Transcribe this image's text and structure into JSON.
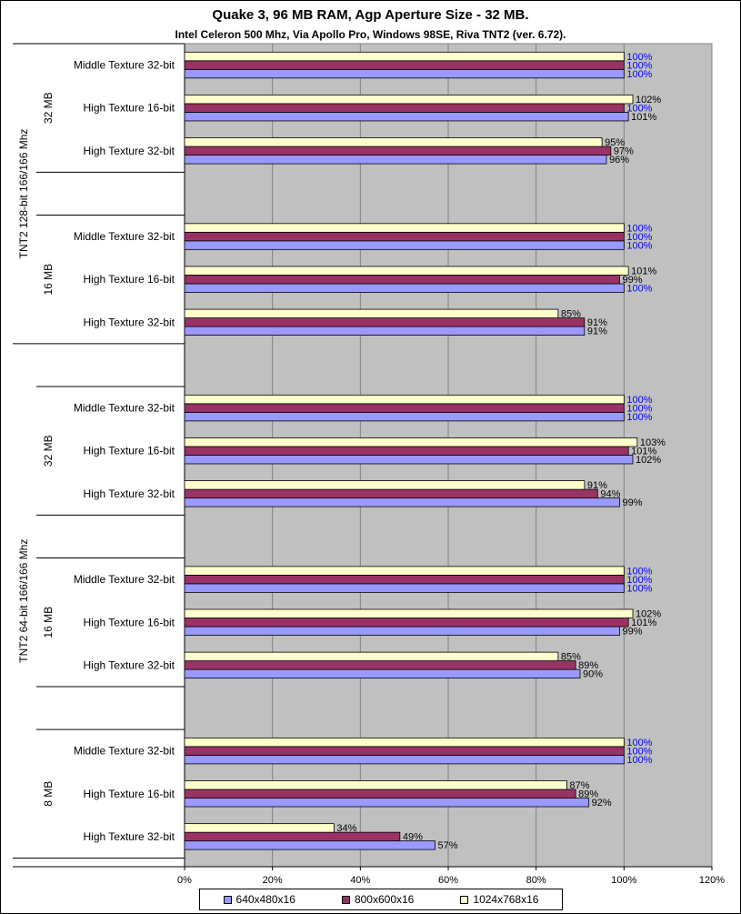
{
  "title": "Quake 3, 96 MB RAM,  Agp Aperture Size - 32 MB.",
  "subtitle": "Intel Celeron 500 Mhz, Via Apollo Pro, Windows 98SE, Riva TNT2 (ver. 6.72).",
  "colors": {
    "plot_bg": "#c0c0c0",
    "series": [
      "#9999ff",
      "#993366",
      "#ffffcc"
    ],
    "baseline_label": "#0000ff",
    "label": "#000000"
  },
  "chart_data": {
    "type": "bar",
    "orientation": "horizontal",
    "title": "Quake 3, 96 MB RAM,  Agp Aperture Size - 32 MB.",
    "subtitle": "Intel Celeron 500 Mhz, Via Apollo Pro, Windows 98SE, Riva TNT2 (ver. 6.72).",
    "xlim": [
      0,
      120
    ],
    "x_ticks": [
      "0%",
      "20%",
      "40%",
      "60%",
      "80%",
      "100%",
      "120%"
    ],
    "grid": true,
    "legend_position": "bottom",
    "series_names": [
      "640x480x16",
      "800x600x16",
      "1024x768x16"
    ],
    "groups": [
      {
        "card": "TNT2 128-bit 166/166 Mhz",
        "memory": [
          {
            "size": "32 MB",
            "tests": [
              {
                "name": "Middle Texture 32-bit",
                "values": [
                  100,
                  100,
                  100
                ],
                "labels": [
                  "100%",
                  "100%",
                  "100%"
                ]
              },
              {
                "name": "High Texture 16-bit",
                "values": [
                  101,
                  100,
                  102
                ],
                "labels": [
                  "101%",
                  "100%",
                  "102%"
                ]
              },
              {
                "name": "High Texture 32-bit",
                "values": [
                  96,
                  97,
                  95
                ],
                "labels": [
                  "96%",
                  "97%",
                  "95%"
                ]
              }
            ]
          },
          {
            "size": "16 MB",
            "tests": [
              {
                "name": "Middle Texture 32-bit",
                "values": [
                  100,
                  100,
                  100
                ],
                "labels": [
                  "100%",
                  "100%",
                  "100%"
                ]
              },
              {
                "name": "High Texture 16-bit",
                "values": [
                  100,
                  99,
                  101
                ],
                "labels": [
                  "100%",
                  "99%",
                  "101%"
                ]
              },
              {
                "name": "High Texture 32-bit",
                "values": [
                  91,
                  91,
                  85
                ],
                "labels": [
                  "91%",
                  "91%",
                  "85%"
                ]
              }
            ]
          }
        ]
      },
      {
        "card": "TNT2 64-bit 166/166 Mhz",
        "memory": [
          {
            "size": "32 MB",
            "tests": [
              {
                "name": "Middle Texture 32-bit",
                "values": [
                  100,
                  100,
                  100
                ],
                "labels": [
                  "100%",
                  "100%",
                  "100%"
                ]
              },
              {
                "name": "High Texture 16-bit",
                "values": [
                  102,
                  101,
                  103
                ],
                "labels": [
                  "102%",
                  "101%",
                  "103%"
                ]
              },
              {
                "name": "High Texture 32-bit",
                "values": [
                  99,
                  94,
                  91
                ],
                "labels": [
                  "99%",
                  "94%",
                  "91%"
                ]
              }
            ]
          },
          {
            "size": "16 MB",
            "tests": [
              {
                "name": "Middle Texture 32-bit",
                "values": [
                  100,
                  100,
                  100
                ],
                "labels": [
                  "100%",
                  "100%",
                  "100%"
                ]
              },
              {
                "name": "High Texture 16-bit",
                "values": [
                  99,
                  101,
                  102
                ],
                "labels": [
                  "99%",
                  "101%",
                  "102%"
                ]
              },
              {
                "name": "High Texture 32-bit",
                "values": [
                  90,
                  89,
                  85
                ],
                "labels": [
                  "90%",
                  "89%",
                  "85%"
                ]
              }
            ]
          },
          {
            "size": "8 MB",
            "tests": [
              {
                "name": "Middle Texture 32-bit",
                "values": [
                  100,
                  100,
                  100
                ],
                "labels": [
                  "100%",
                  "100%",
                  "100%"
                ]
              },
              {
                "name": "High Texture 16-bit",
                "values": [
                  92,
                  89,
                  87
                ],
                "labels": [
                  "92%",
                  "89%",
                  "87%"
                ]
              },
              {
                "name": "High Texture 32-bit",
                "values": [
                  57,
                  49,
                  34
                ],
                "labels": [
                  "57%",
                  "49%",
                  "34%"
                ]
              }
            ]
          }
        ]
      }
    ]
  }
}
